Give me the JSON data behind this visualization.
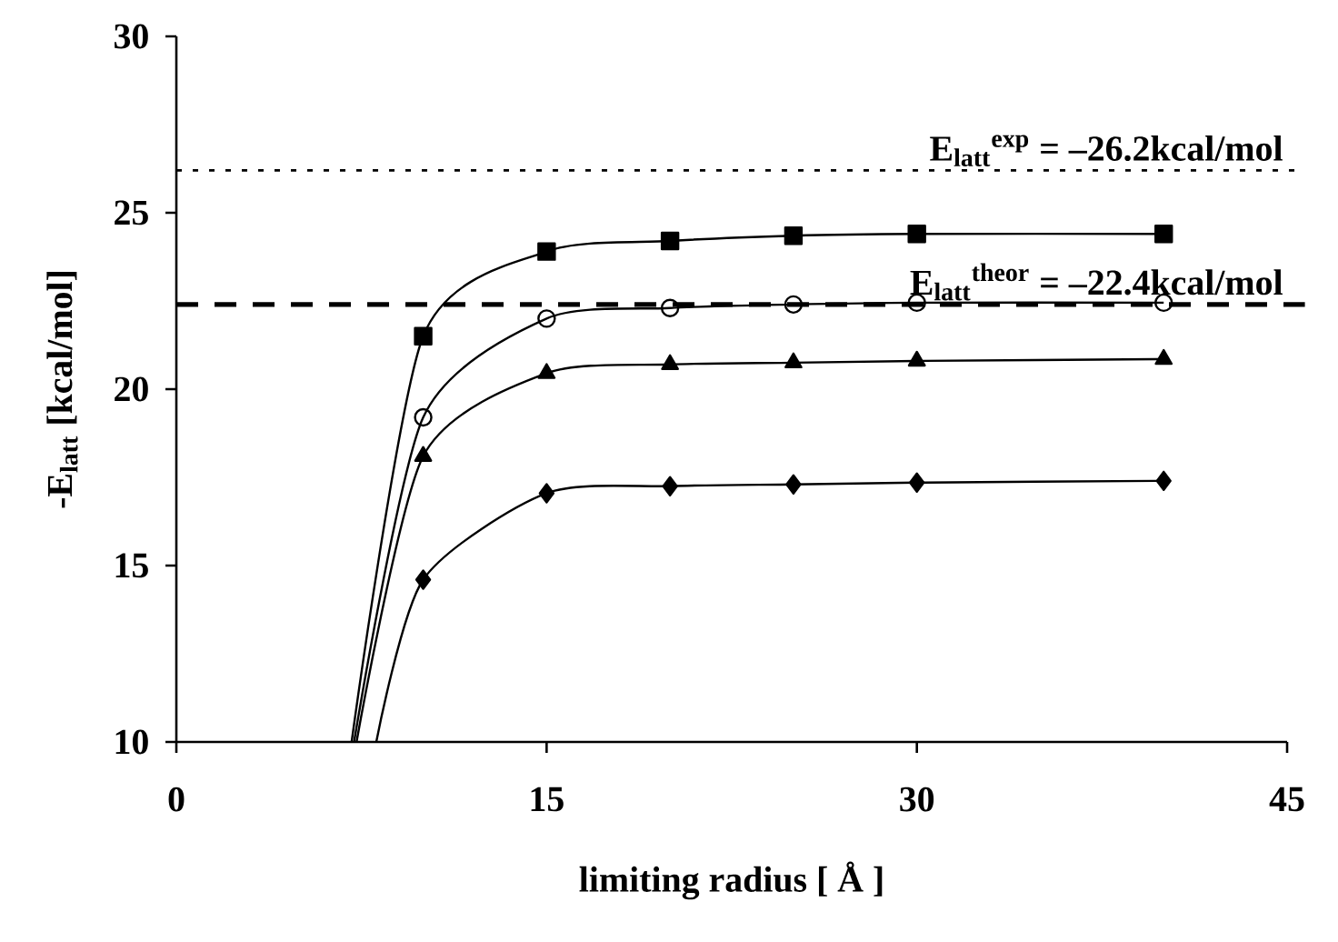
{
  "chart_data": {
    "type": "line",
    "xlabel": "limiting radius [ Å ]",
    "ylabel": "-E$_{latt}$ [kcal/mol]",
    "xlim": [
      0,
      45
    ],
    "xticks": [
      0,
      15,
      30,
      45
    ],
    "ylim": [
      10,
      30
    ],
    "yticks": [
      10,
      15,
      20,
      25,
      30
    ],
    "series": [
      {
        "color": "#000000",
        "marker": "square",
        "x": [
          7.1,
          10,
          15,
          20,
          25,
          30,
          40
        ],
        "values": [
          10,
          21.5,
          23.9,
          24.2,
          24.35,
          24.4,
          24.4
        ]
      },
      {
        "color": "#000000",
        "marker": "circle",
        "x": [
          7.2,
          10,
          15,
          20,
          25,
          30,
          40
        ],
        "values": [
          10,
          19.2,
          22.0,
          22.3,
          22.4,
          22.45,
          22.45
        ]
      },
      {
        "color": "#000000",
        "marker": "triangle",
        "x": [
          7.3,
          10,
          15,
          20,
          25,
          30,
          40
        ],
        "values": [
          10,
          18.1,
          20.45,
          20.7,
          20.75,
          20.8,
          20.85
        ]
      },
      {
        "color": "#000000",
        "marker": "diamond",
        "x": [
          8.1,
          10,
          15,
          20,
          25,
          30,
          40
        ],
        "values": [
          10,
          14.6,
          17.05,
          17.25,
          17.3,
          17.35,
          17.4
        ]
      }
    ],
    "ref_lines": [
      {
        "axis": "y",
        "value": 26.2,
        "label": "E$_{latt}$$^{exp}$ = –26.2kcal/mol",
        "line_style": "dotted",
        "color": "#000000"
      },
      {
        "axis": "y",
        "value": 22.4,
        "label": "E$_{latt}$$^{theor}$ = –22.4kcal/mol",
        "line_style": "dashed",
        "color": "#000000"
      }
    ]
  }
}
